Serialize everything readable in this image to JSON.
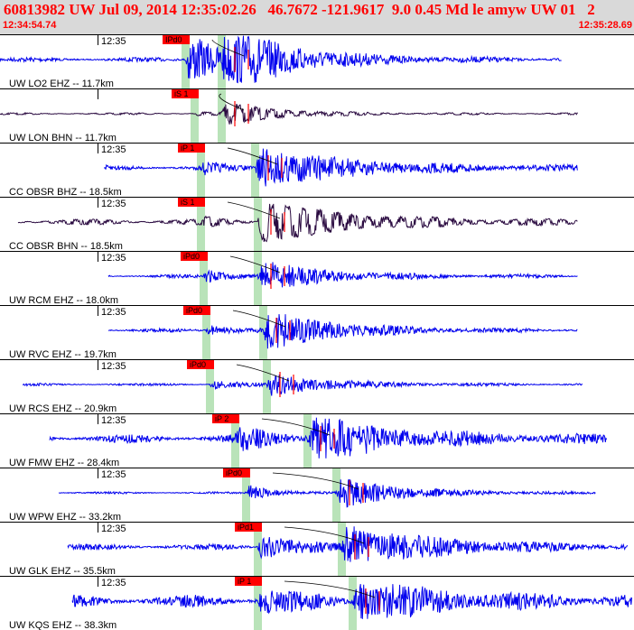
{
  "header": {
    "title": "60813982 UW Jul 09, 2014 12:35:02.26   46.7672 -121.9617  9.0 0.45 Md le amyw UW 01   2",
    "start_time": "12:34:54.74",
    "end_time": "12:35:28.69"
  },
  "colors": {
    "header_bg": "#d9d9d9",
    "header_text": "#ff0000",
    "trace_ehz": "#0000ee",
    "trace_bh": "#2a0a40",
    "pick_flag": "#ff0000",
    "pick_band": "#b9e3b9",
    "amp_marker": "#ff0000"
  },
  "traces": [
    {
      "label": "UW LO2 EHZ -- 11.7km",
      "time_label": "12:35",
      "pick": "IPd0",
      "type": "z",
      "p": 205,
      "s": 245,
      "start": 0,
      "end": 622,
      "noise": 2.5,
      "pamp": 30,
      "samp": 30,
      "pdur": 40,
      "sdur": 40,
      "decay": 80
    },
    {
      "label": "UW LON BHN -- 11.7km",
      "time_label": "",
      "pick": "iS 1",
      "type": "h",
      "p": 215,
      "s": 245,
      "start": 0,
      "end": 640,
      "noise": 1.2,
      "pamp": 2,
      "samp": 12,
      "pdur": 30,
      "sdur": 20,
      "decay": 60
    },
    {
      "label": "CC OBSR BHZ -- 18.5km",
      "time_label": "12:35",
      "pick": "iP 1",
      "type": "z",
      "p": 222,
      "s": 282,
      "start": 115,
      "end": 640,
      "noise": 3,
      "pamp": 6,
      "samp": 22,
      "pdur": 20,
      "sdur": 60,
      "decay": 100
    },
    {
      "label": "CC OBSR BHN -- 18.5km",
      "time_label": "12:35",
      "pick": "iS 1",
      "type": "h",
      "p": 222,
      "s": 285,
      "start": 20,
      "end": 640,
      "noise": 3.5,
      "pamp": 4,
      "samp": 24,
      "pdur": 20,
      "sdur": 55,
      "decay": 90
    },
    {
      "label": "UW RCM EHZ -- 18.0km",
      "time_label": "12:35",
      "pick": "iPd0",
      "type": "z",
      "p": 225,
      "s": 285,
      "start": 120,
      "end": 640,
      "noise": 2,
      "pamp": 7,
      "samp": 16,
      "pdur": 30,
      "sdur": 40,
      "decay": 70
    },
    {
      "label": "UW RVC EHZ -- 19.7km",
      "time_label": "12:35",
      "pick": "iPd0",
      "type": "z",
      "p": 228,
      "s": 291,
      "start": 120,
      "end": 640,
      "noise": 2,
      "pamp": 6,
      "samp": 20,
      "pdur": 30,
      "sdur": 45,
      "decay": 80
    },
    {
      "label": "UW RCS EHZ -- 20.9km",
      "time_label": "12:35",
      "pick": "iPd0",
      "type": "z",
      "p": 232,
      "s": 295,
      "start": 25,
      "end": 645,
      "noise": 1.5,
      "pamp": 5,
      "samp": 12,
      "pdur": 30,
      "sdur": 40,
      "decay": 70
    },
    {
      "label": "UW FMW EHZ -- 28.4km",
      "time_label": "12:35",
      "pick": "iP 2",
      "type": "z",
      "p": 260,
      "s": 340,
      "start": 55,
      "end": 672,
      "noise": 5,
      "pamp": 12,
      "samp": 22,
      "pdur": 40,
      "sdur": 60,
      "decay": 100
    },
    {
      "label": "UW WPW EHZ -- 33.2km",
      "time_label": "12:35",
      "pick": "iPd0",
      "type": "z",
      "p": 272,
      "s": 372,
      "start": 65,
      "end": 660,
      "noise": 1.2,
      "pamp": 8,
      "samp": 16,
      "pdur": 30,
      "sdur": 40,
      "decay": 70
    },
    {
      "label": "UW GLK EHZ -- 35.5km",
      "time_label": "12:35",
      "pick": "iPd1",
      "type": "z",
      "p": 285,
      "s": 378,
      "start": 75,
      "end": 695,
      "noise": 3.5,
      "pamp": 14,
      "samp": 22,
      "pdur": 40,
      "sdur": 50,
      "decay": 100
    },
    {
      "label": "UW KQS EHZ -- 38.3km",
      "time_label": "12:35",
      "pick": "iP 1",
      "type": "z",
      "p": 285,
      "s": 390,
      "start": 80,
      "end": 700,
      "noise": 7,
      "pamp": 12,
      "samp": 20,
      "pdur": 40,
      "sdur": 60,
      "decay": 100
    }
  ]
}
